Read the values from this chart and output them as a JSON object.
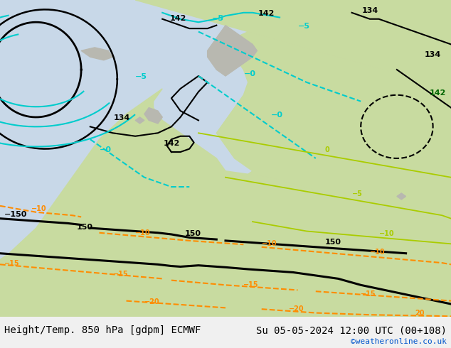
{
  "title_left": "Height/Temp. 850 hPa [gdpm] ECMWF",
  "title_right": "Su 05-05-2024 12:00 UTC (00+108)",
  "credit": "©weatheronline.co.uk",
  "title_fontsize": 10,
  "credit_fontsize": 8,
  "credit_color": "#0055cc",
  "title_color": "#000000",
  "footer_bg": "#f0f0f0",
  "land_color": "#c8dba0",
  "sea_color": "#c8d8e8",
  "gray_land_color": "#b8b8b0",
  "orange": "#ff8c00",
  "yellow_green": "#aacc00",
  "cyan_color": "#00cccc"
}
